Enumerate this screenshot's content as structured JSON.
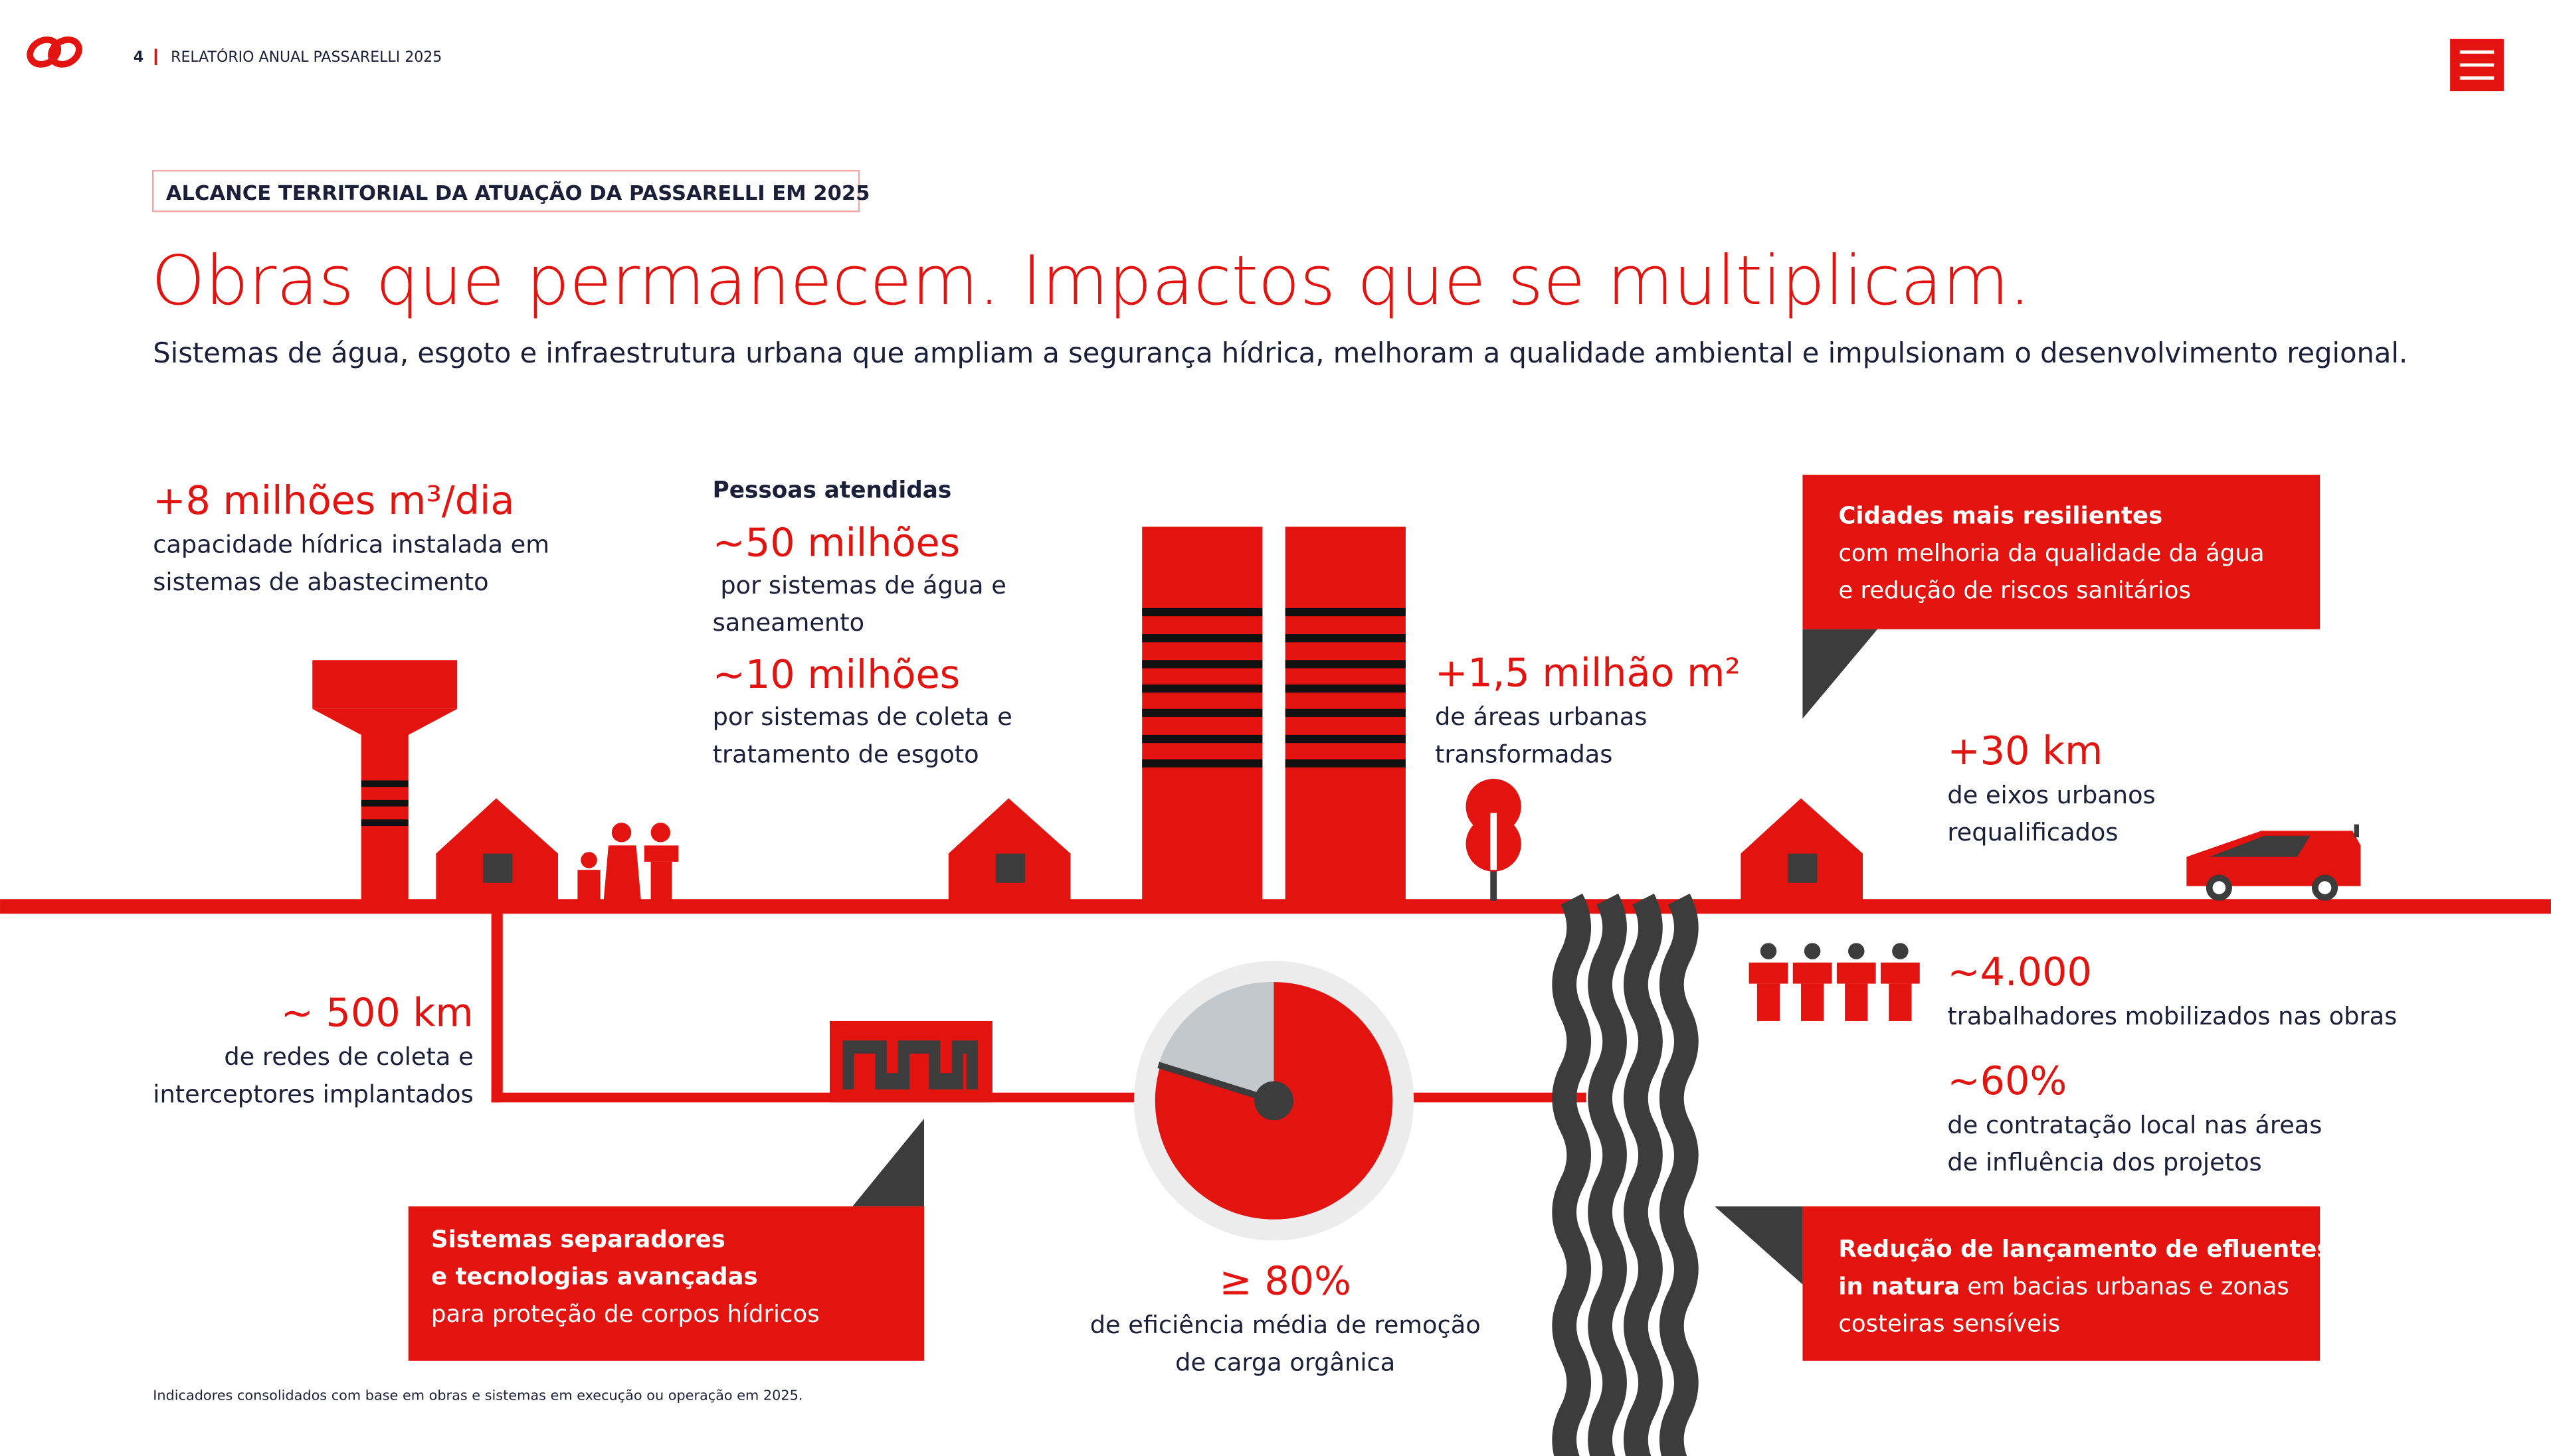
{
  "header": {
    "page_number": "4",
    "report_title": "RELATÓRIO ANUAL PASSARELLI 2025"
  },
  "section_label": "ALCANCE TERRITORIAL DA ATUAÇÃO DA PASSARELLI EM 2025",
  "title": "Obras que permanecem. Impactos que se multiplicam.",
  "subtitle": "Sistemas de água, esgoto e infraestrutura urbana que ampliam a segurança hídrica, melhoram a qualidade ambiental e impulsionam o desenvolvimento regional.",
  "stats": [
    {
      "value": "+8 milhões m³/dia",
      "lines": [
        "capacidade hídrica instalada em",
        "sistemas de abastecimento"
      ]
    },
    {
      "value": "+1,5 milhão m²",
      "lines": [
        "de áreas urbanas",
        "transformadas"
      ]
    },
    {
      "value": "+30 km",
      "lines": [
        "de eixos urbanos",
        "requalificados"
      ]
    },
    {
      "value": "~ 500 km",
      "lines": [
        "de redes de coleta e",
        "interceptores implantados"
      ]
    },
    {
      "value": "~4.000",
      "lines": [
        "trabalhadores mobilizados nas obras"
      ]
    },
    {
      "value": "~60%",
      "lines": [
        "de contratação local nas áreas",
        "de influência dos projetos"
      ]
    },
    {
      "value": "≥ 80%",
      "lines": [
        "de eficiência média de remoção",
        "de carga orgânica"
      ]
    }
  ],
  "people_served": {
    "heading": "Pessoas atendidas",
    "items": [
      {
        "value": "~50 milhões",
        "lines": [
          " por sistemas de água e",
          "saneamento"
        ]
      },
      {
        "value": "~10 milhões",
        "lines": [
          "por sistemas de coleta e",
          "tratamento de esgoto"
        ]
      }
    ]
  },
  "callouts": [
    {
      "lines": [
        {
          "bold": "Cidades mais resilientes"
        },
        {
          "regular": "com melhoria da qualidade da água"
        },
        {
          "regular": "e redução de riscos sanitários"
        }
      ]
    },
    {
      "lines": [
        {
          "bold": "Sistemas separadores"
        },
        {
          "bold": "e tecnologias avançadas"
        },
        {
          "regular": "para proteção de corpos hídricos"
        }
      ]
    },
    {
      "lines": [
        {
          "bold": "Redução de lançamento de efluentes"
        },
        {
          "bold": "in natura",
          "regular": " em bacias urbanas e zonas"
        },
        {
          "regular": "costeiras sensíveis"
        }
      ]
    }
  ],
  "footnote": "Indicadores consolidados com base em obras e sistemas em execução ou operação em 2025."
}
